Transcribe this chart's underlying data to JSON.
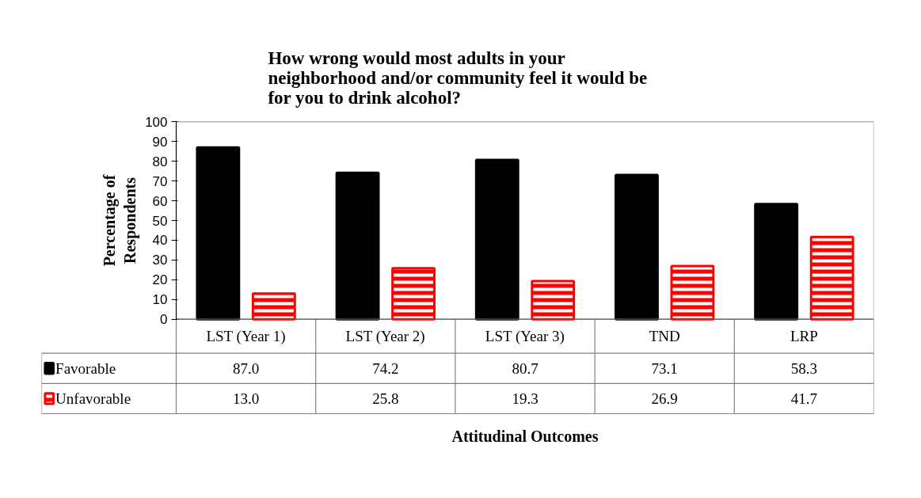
{
  "chart_data": {
    "type": "bar",
    "title": "How wrong would most adults in your\nneighborhood and/or community feel it would be\nfor you to drink alcohol?",
    "annotations": [
      "Attitudinal Outcomes"
    ],
    "ylabel": "Percentage of Respondents",
    "categories": [
      "LST (Year 1)",
      "LST (Year 2)",
      "LST (Year 3)",
      "TND",
      "LRP"
    ],
    "series": [
      {
        "name": "Favorable",
        "color": "#000000",
        "values": [
          87.0,
          74.2,
          80.7,
          73.1,
          58.3
        ],
        "value_labels": [
          "87.0",
          "74.2",
          "80.7",
          "73.1",
          "58.3"
        ]
      },
      {
        "name": "Unfavorable",
        "color": "#ff0000",
        "values": [
          13.0,
          25.8,
          19.3,
          26.9,
          41.7
        ],
        "value_labels": [
          "13.0",
          "25.8",
          "19.3",
          "26.9",
          "41.7"
        ]
      }
    ],
    "ylim": [
      0,
      100
    ],
    "yticks": [
      0,
      10,
      20,
      30,
      40,
      50,
      60,
      70,
      80,
      90,
      100
    ],
    "grid": false,
    "legend": "bottom"
  }
}
